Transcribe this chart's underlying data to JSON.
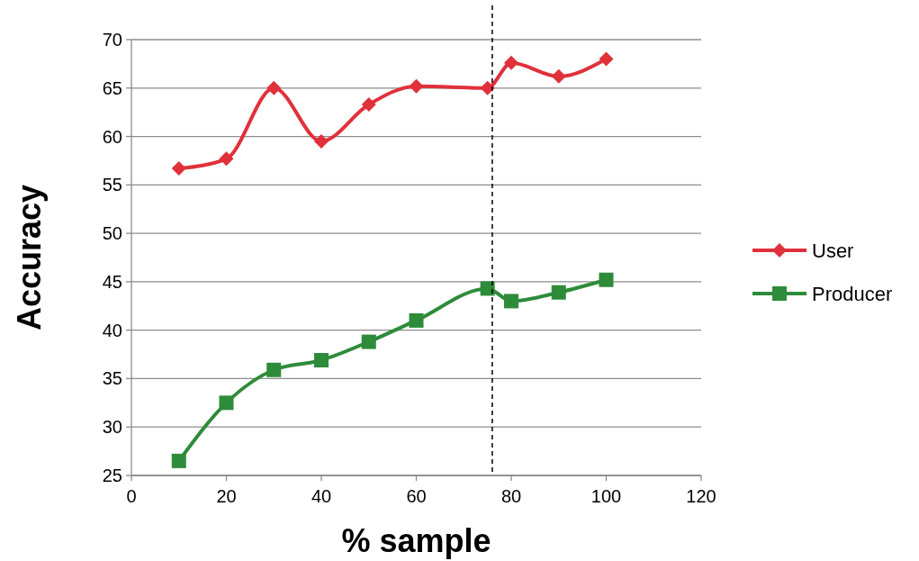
{
  "chart_data": {
    "type": "line",
    "xlabel": "% sample",
    "ylabel": "Accuracy",
    "xlim": [
      0,
      120
    ],
    "xticks": [
      0,
      20,
      40,
      60,
      80,
      100,
      120
    ],
    "ylim": [
      25,
      70
    ],
    "yticks": [
      25,
      30,
      35,
      40,
      45,
      50,
      55,
      60,
      65,
      70
    ],
    "grid": "y",
    "legend": "right",
    "series": [
      {
        "name": "User",
        "color": "#e0313b",
        "marker": "diamond",
        "x": [
          10,
          20,
          30,
          40,
          50,
          60,
          75,
          80,
          90,
          100
        ],
        "values": [
          56.7,
          57.7,
          65.0,
          59.5,
          63.3,
          65.2,
          65.0,
          67.6,
          66.2,
          68.0
        ]
      },
      {
        "name": "Producer",
        "color": "#2e8b3a",
        "marker": "square",
        "x": [
          10,
          20,
          30,
          40,
          50,
          60,
          75,
          80,
          90,
          100
        ],
        "values": [
          26.5,
          32.5,
          35.9,
          36.9,
          38.8,
          41.0,
          44.3,
          43.0,
          43.9,
          45.2
        ]
      }
    ],
    "ref_lines": [
      {
        "axis": "x",
        "value": 76,
        "line_style": "dashed",
        "color": "#000000"
      }
    ]
  }
}
